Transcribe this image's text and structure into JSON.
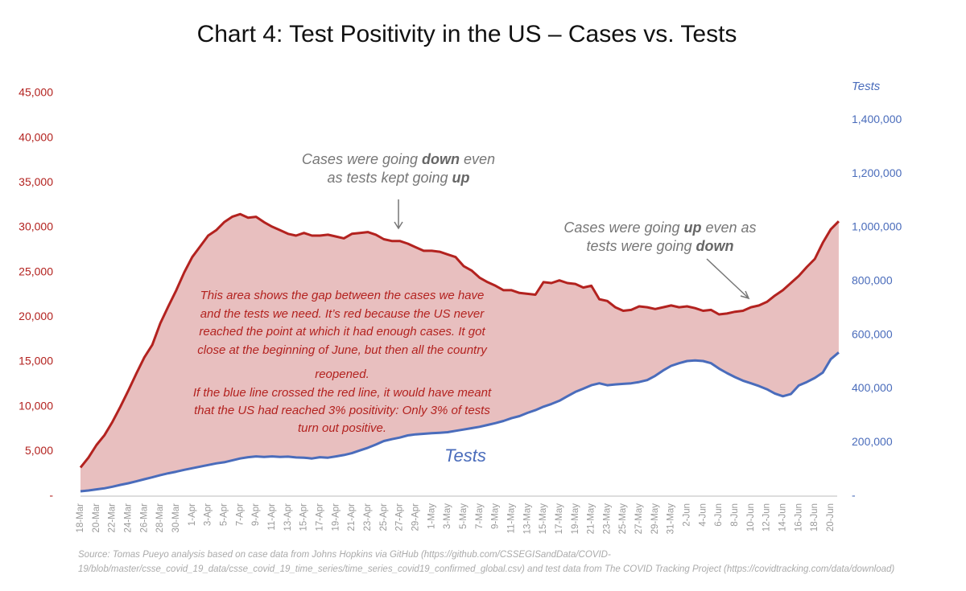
{
  "chart_data": {
    "type": "line",
    "title": "Chart 4: Test Positivity in the US – Cases vs. Tests",
    "y2label": "Tests",
    "categories": [
      "18-Mar",
      null,
      "20-Mar",
      null,
      "22-Mar",
      null,
      "24-Mar",
      null,
      "26-Mar",
      null,
      "28-Mar",
      null,
      "30-Mar",
      null,
      "1-Apr",
      null,
      "3-Apr",
      null,
      "5-Apr",
      null,
      "7-Apr",
      null,
      "9-Apr",
      null,
      "11-Apr",
      null,
      "13-Apr",
      null,
      "15-Apr",
      null,
      "17-Apr",
      null,
      "19-Apr",
      null,
      "21-Apr",
      null,
      "23-Apr",
      null,
      "25-Apr",
      null,
      "27-Apr",
      null,
      "29-Apr",
      null,
      "1-May",
      null,
      "3-May",
      null,
      "5-May",
      null,
      "7-May",
      null,
      "9-May",
      null,
      "11-May",
      null,
      "13-May",
      null,
      "15-May",
      null,
      "17-May",
      null,
      "19-May",
      null,
      "21-May",
      null,
      "23-May",
      null,
      "25-May",
      null,
      "27-May",
      null,
      "29-May",
      null,
      "31-May",
      null,
      "2-Jun",
      null,
      "4-Jun",
      null,
      "6-Jun",
      null,
      "8-Jun",
      null,
      "10-Jun",
      null,
      "12-Jun",
      null,
      "14-Jun",
      null,
      "16-Jun",
      null,
      "18-Jun",
      null,
      "20-Jun",
      null
    ],
    "series": [
      {
        "color": "#b3221f",
        "values": [
          3200,
          4300,
          5700,
          6800,
          8300,
          10000,
          11800,
          13700,
          15500,
          16900,
          19300,
          21200,
          23000,
          25000,
          26700,
          27900,
          29100,
          29700,
          30600,
          31200,
          31500,
          31100,
          31200,
          30600,
          30100,
          29700,
          29300,
          29100,
          29400,
          29100,
          29100,
          29200,
          29000,
          28800,
          29300,
          29400,
          29500,
          29200,
          28700,
          28500,
          28500,
          28200,
          27800,
          27400,
          27400,
          27300,
          27000,
          26700,
          25700,
          25200,
          24400,
          23900,
          23500,
          23000,
          23000,
          22700,
          22600,
          22500,
          23900,
          23800,
          24100,
          23800,
          23700,
          23300,
          23500,
          22000,
          21800,
          21100,
          20700,
          20800,
          21200,
          21100,
          20900,
          21100,
          21300,
          21100,
          21200,
          21000,
          20700,
          20800,
          20300,
          20400,
          20600,
          20700,
          21100,
          21300,
          21700,
          22400,
          23000,
          23800,
          24600,
          25600,
          26500,
          28300,
          29800,
          30700
        ]
      },
      {
        "name": "Tests",
        "color": "#4a6cbb",
        "axis": "y2",
        "values": [
          18000,
          21000,
          25000,
          29000,
          35000,
          42000,
          48000,
          55000,
          63000,
          70000,
          78000,
          85000,
          91000,
          98000,
          104000,
          110000,
          116000,
          122000,
          126000,
          133000,
          140000,
          145000,
          148000,
          146000,
          148000,
          146000,
          147000,
          144000,
          143000,
          140000,
          145000,
          143000,
          148000,
          153000,
          160000,
          170000,
          180000,
          192000,
          205000,
          212000,
          218000,
          226000,
          230000,
          232000,
          234000,
          236000,
          238000,
          243000,
          248000,
          253000,
          258000,
          265000,
          272000,
          280000,
          290000,
          298000,
          310000,
          320000,
          333000,
          343000,
          355000,
          372000,
          388000,
          400000,
          413000,
          420000,
          413000,
          416000,
          418000,
          420000,
          425000,
          432000,
          448000,
          468000,
          485000,
          495000,
          503000,
          505000,
          503000,
          495000,
          475000,
          458000,
          443000,
          430000,
          420000,
          410000,
          398000,
          382000,
          372000,
          380000,
          412000,
          425000,
          440000,
          460000,
          510000,
          535000
        ]
      }
    ],
    "fill_between": "#e8bfbf",
    "ylim": [
      0,
      45000
    ],
    "yticks": [
      {
        "value": 0,
        "label": "-"
      },
      {
        "value": 5000,
        "label": "5,000"
      },
      {
        "value": 10000,
        "label": "10,000"
      },
      {
        "value": 15000,
        "label": "15,000"
      },
      {
        "value": 20000,
        "label": "20,000"
      },
      {
        "value": 25000,
        "label": "25,000"
      },
      {
        "value": 30000,
        "label": "30,000"
      },
      {
        "value": 35000,
        "label": "35,000"
      },
      {
        "value": 40000,
        "label": "40,000"
      },
      {
        "value": 45000,
        "label": "45,000"
      }
    ],
    "y2lim": [
      0,
      1500000
    ],
    "y2ticks": [
      {
        "value": 0,
        "label": "-"
      },
      {
        "value": 200000,
        "label": "200,000"
      },
      {
        "value": 400000,
        "label": "400,000"
      },
      {
        "value": 600000,
        "label": "600,000"
      },
      {
        "value": 800000,
        "label": "800,000"
      },
      {
        "value": 1000000,
        "label": "1,000,000"
      },
      {
        "value": 1200000,
        "label": "1,200,000"
      },
      {
        "value": 1400000,
        "label": "1,400,000"
      }
    ],
    "grid": false,
    "annotations": [
      {
        "lines": [
          [
            "Cases were going ",
            "down",
            " even"
          ],
          [
            "as tests kept going ",
            "up"
          ]
        ]
      },
      {
        "lines": [
          [
            "Cases were going ",
            "up",
            " even as"
          ],
          [
            "tests were going ",
            "down"
          ]
        ]
      },
      {
        "lines": [
          [
            "This area shows the gap between the cases we have"
          ],
          [
            "and the tests we need. It’s red because the US never"
          ],
          [
            "reached the point at which it had enough cases. It got"
          ],
          [
            "close at the beginning of June, but then all the country"
          ],
          [
            "reopened."
          ],
          [
            "If the blue line crossed the red line, it would have meant"
          ],
          [
            "that the US had reached 3% positivity: Only 3% of tests"
          ],
          [
            "turn out positive."
          ]
        ]
      }
    ],
    "source": [
      "Source: Tomas Pueyo analysis based on case data from Johns Hopkins via GitHub (https://github.com/CSSEGISandData/COVID-",
      "19/blob/master/csse_covid_19_data/csse_covid_19_time_series/time_series_covid19_confirmed_global.csv) and test data from The COVID Tracking Project (https://covidtracking.com/data/download)"
    ]
  }
}
